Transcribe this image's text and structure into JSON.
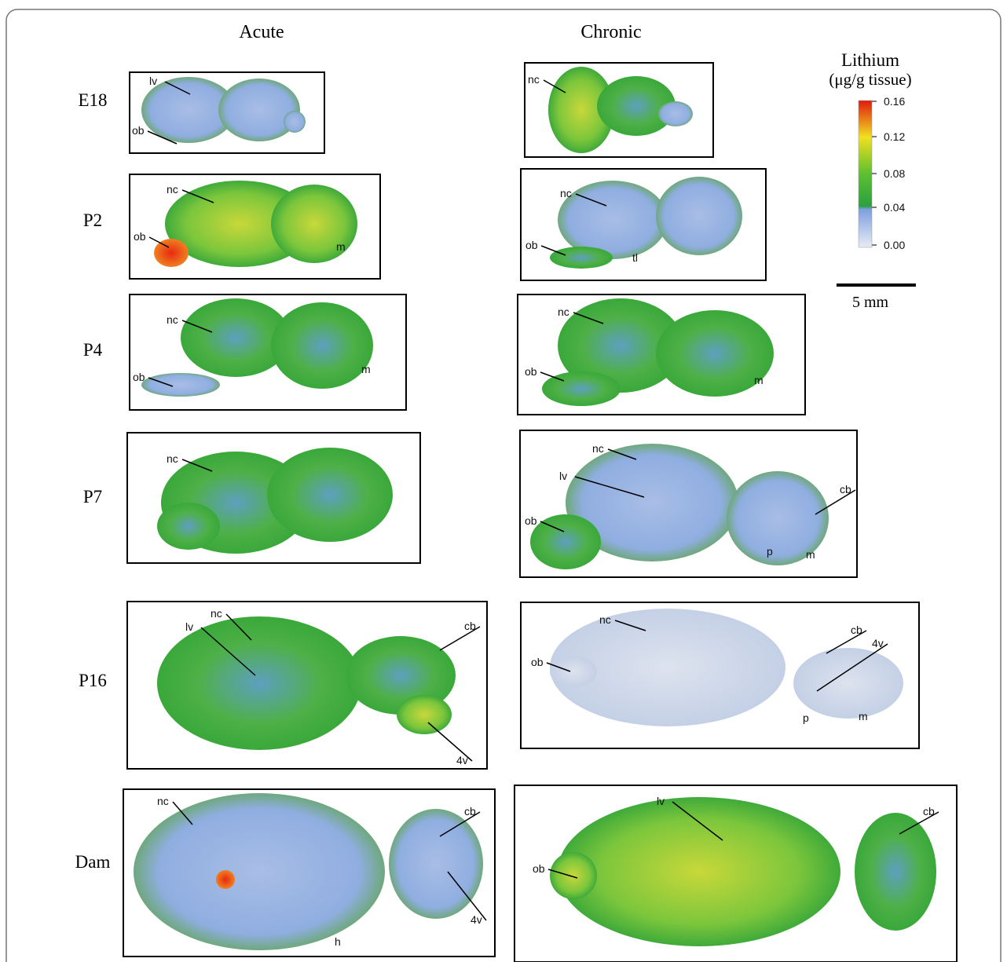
{
  "columns": [
    "Acute",
    "Chronic"
  ],
  "legend": {
    "title": "Lithium",
    "unit": "(μg/g tissue)",
    "ticks": [
      "0.16",
      "0.12",
      "0.08",
      "0.04",
      "0.00"
    ]
  },
  "scale_bar": "5 mm",
  "rows": [
    {
      "label": "E18",
      "acute": {
        "annotations": [
          "lv",
          "ob"
        ]
      },
      "chronic": {
        "annotations": [
          "nc"
        ]
      }
    },
    {
      "label": "P2",
      "acute": {
        "annotations": [
          "nc",
          "ob",
          "m"
        ]
      },
      "chronic": {
        "annotations": [
          "nc",
          "ob",
          "tl"
        ]
      }
    },
    {
      "label": "P4",
      "acute": {
        "annotations": [
          "nc",
          "ob",
          "m"
        ]
      },
      "chronic": {
        "annotations": [
          "nc",
          "ob",
          "m"
        ]
      }
    },
    {
      "label": "P7",
      "acute": {
        "annotations": [
          "nc"
        ]
      },
      "chronic": {
        "annotations": [
          "nc",
          "lv",
          "cb",
          "ob",
          "p",
          "m"
        ]
      }
    },
    {
      "label": "P16",
      "acute": {
        "annotations": [
          "nc",
          "lv",
          "cb",
          "4v"
        ]
      },
      "chronic": {
        "annotations": [
          "nc",
          "ob",
          "cb",
          "4v",
          "p",
          "m"
        ]
      }
    },
    {
      "label": "Dam",
      "acute": {
        "annotations": [
          "nc",
          "cb",
          "4v",
          "h"
        ]
      },
      "chronic": {
        "annotations": [
          "lv",
          "cb",
          "ob"
        ]
      }
    }
  ]
}
